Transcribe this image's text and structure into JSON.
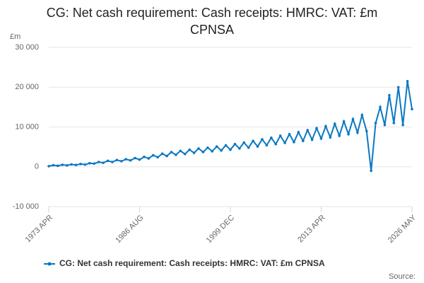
{
  "chart_data": {
    "type": "line",
    "title": "CG: Net cash requirement: Cash receipts: HMRC: VAT: £m CPNSA",
    "y_label": "£m",
    "source": "Source:",
    "categories": [
      "1973 APR",
      null,
      null,
      null,
      null,
      null,
      null,
      null,
      null,
      null,
      null,
      null,
      null,
      null,
      null,
      null,
      null,
      null,
      null,
      null,
      "1986 AUG",
      null,
      null,
      null,
      null,
      null,
      null,
      null,
      null,
      null,
      null,
      null,
      null,
      null,
      null,
      null,
      null,
      null,
      null,
      null,
      "1999 DEC",
      null,
      null,
      null,
      null,
      null,
      null,
      null,
      null,
      null,
      null,
      null,
      null,
      null,
      null,
      null,
      null,
      null,
      null,
      null,
      "2013 APR",
      null,
      null,
      null,
      null,
      null,
      null,
      null,
      null,
      null,
      null,
      null,
      null,
      null,
      null,
      null,
      null,
      null,
      null,
      null,
      "2026 MAY"
    ],
    "series": [
      {
        "name": "CG: Net cash requirement: Cash receipts: HMRC: VAT: £m CPNSA",
        "color": "#0a78c2",
        "values": [
          150,
          400,
          250,
          500,
          350,
          600,
          450,
          700,
          550,
          900,
          800,
          1200,
          1000,
          1500,
          1200,
          1700,
          1400,
          1900,
          1600,
          2200,
          1800,
          2500,
          2100,
          2900,
          2400,
          3300,
          2700,
          3700,
          3000,
          4000,
          3200,
          4300,
          3500,
          4600,
          3700,
          4800,
          3900,
          5100,
          4100,
          5400,
          4300,
          5700,
          4600,
          6100,
          4800,
          6500,
          5100,
          6900,
          5400,
          7300,
          5700,
          7800,
          6000,
          8200,
          6200,
          8700,
          6500,
          9200,
          6800,
          9700,
          7100,
          10200,
          7400,
          10800,
          7800,
          11400,
          8200,
          12000,
          8600,
          13000,
          9000,
          -1000,
          11000,
          15000,
          10500,
          18000,
          11000,
          20000,
          10500,
          21500,
          14500
        ]
      }
    ],
    "ylim": [
      -10000,
      30000
    ],
    "yticks": [
      {
        "value": -10000,
        "label": "-10 000"
      },
      0,
      {
        "value": 10000,
        "label": "10 000"
      },
      {
        "value": 20000,
        "label": "20 000"
      },
      {
        "value": 30000,
        "label": "30 000"
      }
    ],
    "grid": true
  }
}
